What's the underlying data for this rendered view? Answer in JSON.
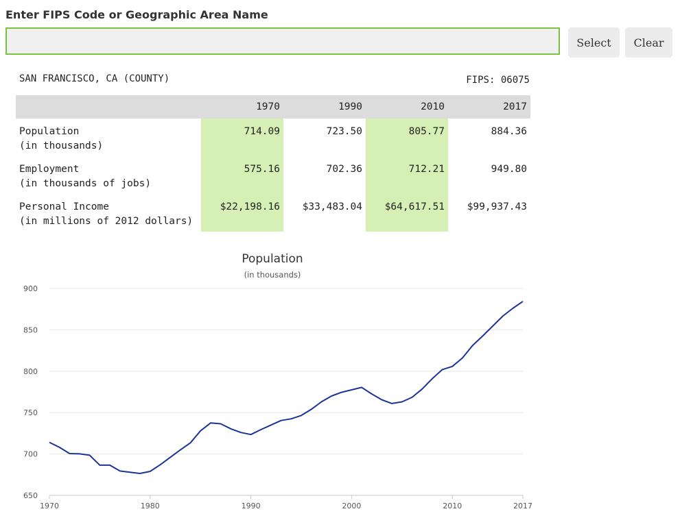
{
  "search": {
    "label": "Enter FIPS Code or Geographic Area Name",
    "value": "",
    "placeholder": "",
    "select_label": "Select",
    "clear_label": "Clear"
  },
  "area": {
    "name": "SAN FRANCISCO, CA (COUNTY)",
    "fips_label": "FIPS:",
    "fips_code": "06075"
  },
  "table": {
    "years": [
      "1970",
      "1990",
      "2010",
      "2017"
    ],
    "highlight_columns": [
      0,
      2
    ],
    "highlight_color": "#d6efb5",
    "header_color": "#dcdcdc",
    "rows": [
      {
        "label": "Population",
        "sublabel": "(in thousands)",
        "values": [
          "714.09",
          "723.50",
          "805.77",
          "884.36"
        ]
      },
      {
        "label": "Employment",
        "sublabel": "(in thousands of jobs)",
        "values": [
          "575.16",
          "702.36",
          "712.21",
          "949.80"
        ]
      },
      {
        "label": "Personal Income",
        "sublabel": "(in millions of 2012 dollars)",
        "values": [
          "$22,198.16",
          "$33,483.04",
          "$64,617.51",
          "$99,937.43"
        ]
      }
    ]
  },
  "chart_data": {
    "type": "line",
    "title": "Population",
    "subtitle": "(in thousands)",
    "xlabel": "",
    "ylabel": "",
    "xlim": [
      1970,
      2017
    ],
    "ylim": [
      650,
      900
    ],
    "yticks": [
      650,
      700,
      750,
      800,
      850,
      900
    ],
    "xticks": [
      1970,
      1980,
      1990,
      2000,
      2010,
      2017
    ],
    "grid": true,
    "line_color": "#1a3399",
    "x": [
      1970,
      1971,
      1972,
      1973,
      1974,
      1975,
      1976,
      1977,
      1978,
      1979,
      1980,
      1981,
      1982,
      1983,
      1984,
      1985,
      1986,
      1987,
      1988,
      1989,
      1990,
      1991,
      1992,
      1993,
      1994,
      1995,
      1996,
      1997,
      1998,
      1999,
      2000,
      2001,
      2002,
      2003,
      2004,
      2005,
      2006,
      2007,
      2008,
      2009,
      2010,
      2011,
      2012,
      2013,
      2014,
      2015,
      2016,
      2017
    ],
    "series": [
      {
        "values": [
          714.09,
          708,
          700.5,
          700.2,
          698.5,
          686.5,
          686.5,
          679.5,
          678,
          676.5,
          679,
          687,
          696,
          705,
          713.5,
          728,
          737.5,
          736.5,
          730.5,
          726,
          723.5,
          729.5,
          735,
          740.5,
          742.5,
          746.5,
          754,
          763,
          770,
          774.5,
          777.5,
          780.5,
          772.5,
          765.5,
          761,
          763,
          768.5,
          778.5,
          791,
          802,
          805.77,
          816,
          831,
          842.5,
          854.5,
          866.5,
          876,
          884.36
        ]
      }
    ]
  }
}
